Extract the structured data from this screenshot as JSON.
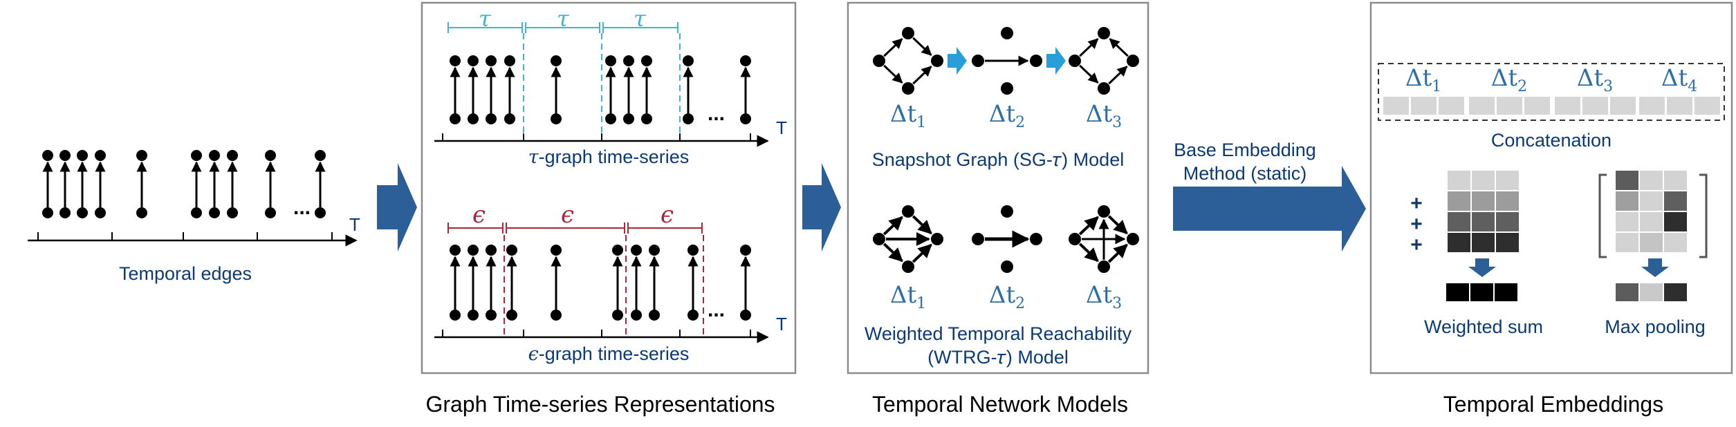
{
  "colors": {
    "navy_text": "#0b3a75",
    "arrow_blue": "#2c5f97",
    "tau_cyan": "#3bb5d4",
    "epsilon_red": "#a8253a",
    "node_black": "#000000",
    "panel_border": "#8a8a8a",
    "light_arrow": "#2a9ed8"
  },
  "temporal_edges": {
    "label": "Temporal edges",
    "axis_label": "T",
    "ellipsis": "..."
  },
  "graph_series_panel": {
    "tau_symbol": "τ",
    "tau_axis_label": "T",
    "tau_caption_symbol": "τ",
    "tau_caption_text": "-graph time-series",
    "epsilon_symbol": "ϵ",
    "epsilon_axis_label": "T",
    "epsilon_caption_symbol": "ϵ",
    "epsilon_caption_text": "-graph time-series",
    "ellipsis": "..."
  },
  "models_panel": {
    "delta_symbol": "Δt",
    "subscripts": [
      "1",
      "2",
      "3"
    ],
    "sg_label": "Snapshot Graph (SG-𝜏) Model",
    "wtrg_label_line1": "Weighted Temporal Reachability",
    "wtrg_label_line2": "(WTRG-𝜏) Model"
  },
  "base_embedding": {
    "line1": "Base Embedding",
    "line2": "Method (static)"
  },
  "embeddings_panel": {
    "delta_symbol": "Δt",
    "subscripts": [
      "1",
      "2",
      "3",
      "4"
    ],
    "concat_label": "Concatenation",
    "plus_signs": [
      "+",
      "+",
      "+"
    ],
    "weighted_sum_label": "Weighted sum",
    "max_pooling_label": "Max pooling"
  },
  "section_titles": {
    "graph_series": "Graph Time-series Representations",
    "network_models": "Temporal Network Models",
    "embeddings": "Temporal Embeddings"
  }
}
